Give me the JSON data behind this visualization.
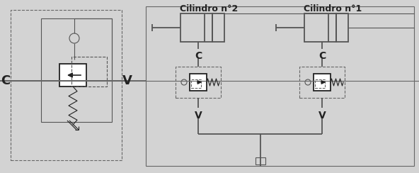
{
  "bg_color": "#d3d3d3",
  "line_color": "#666666",
  "dark_color": "#222222",
  "med_color": "#555555",
  "title2": "Cilindro n°2",
  "title1": "Cilindro n°1",
  "label_C": "C",
  "label_V": "V",
  "figsize": [
    5.92,
    2.44
  ],
  "dpi": 100
}
